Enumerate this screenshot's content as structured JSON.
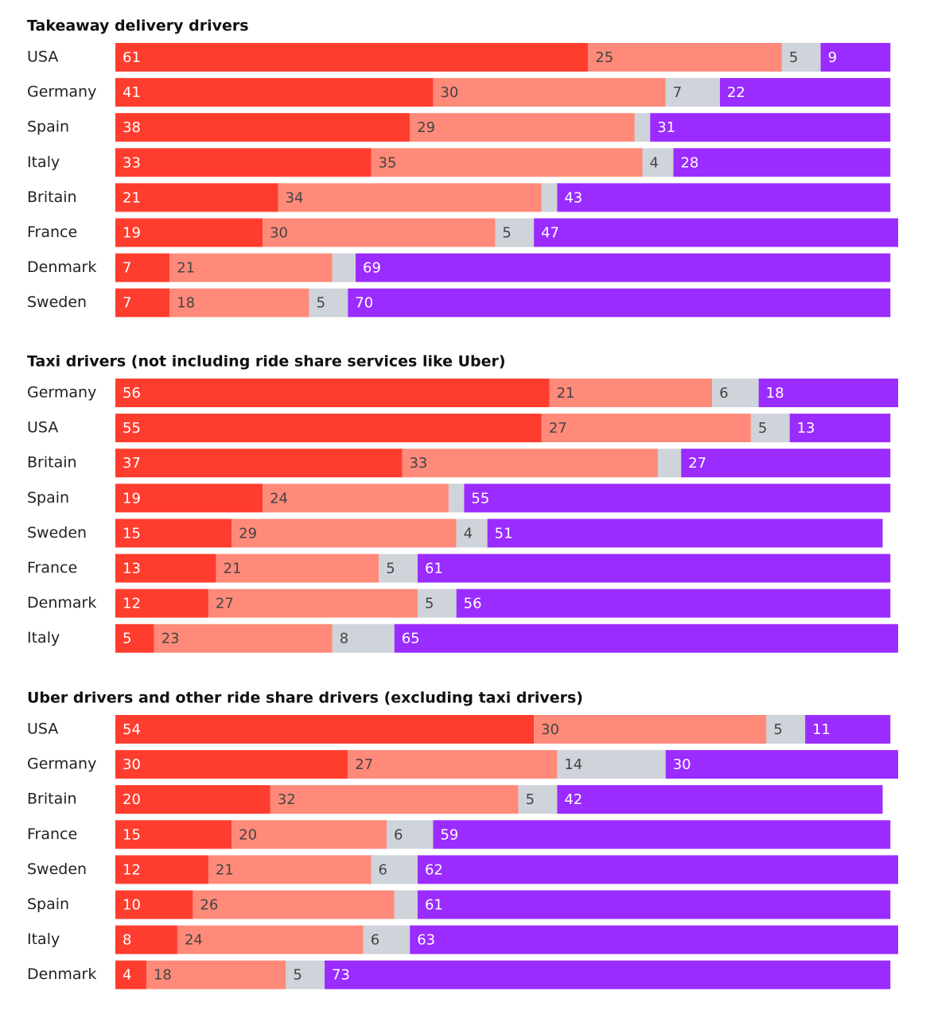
{
  "chart_data": [
    {
      "type": "bar",
      "orientation": "horizontal",
      "stacked": true,
      "title": "Takeaway delivery drivers",
      "categories": [
        "USA",
        "Germany",
        "Spain",
        "Italy",
        "Britain",
        "France",
        "Denmark",
        "Sweden"
      ],
      "series": [
        {
          "color": "#ff3d2e",
          "values": [
            61,
            41,
            38,
            33,
            21,
            19,
            7,
            7
          ]
        },
        {
          "color": "#ff8a7a",
          "values": [
            25,
            30,
            29,
            35,
            34,
            30,
            21,
            18
          ]
        },
        {
          "color": "#cfd3da",
          "values": [
            5,
            7,
            2,
            4,
            2,
            5,
            3,
            5
          ]
        },
        {
          "color": "#9b2cff",
          "values": [
            9,
            22,
            31,
            28,
            43,
            47,
            69,
            70
          ]
        }
      ]
    },
    {
      "type": "bar",
      "orientation": "horizontal",
      "stacked": true,
      "title": "Taxi drivers (not including ride share services like Uber)",
      "categories": [
        "Germany",
        "USA",
        "Britain",
        "Spain",
        "Sweden",
        "France",
        "Denmark",
        "Italy"
      ],
      "series": [
        {
          "color": "#ff3d2e",
          "values": [
            56,
            55,
            37,
            19,
            15,
            13,
            12,
            5
          ]
        },
        {
          "color": "#ff8a7a",
          "values": [
            21,
            27,
            33,
            24,
            29,
            21,
            27,
            23
          ]
        },
        {
          "color": "#cfd3da",
          "values": [
            6,
            5,
            3,
            2,
            4,
            5,
            5,
            8
          ]
        },
        {
          "color": "#9b2cff",
          "values": [
            18,
            13,
            27,
            55,
            51,
            61,
            56,
            65
          ]
        }
      ]
    },
    {
      "type": "bar",
      "orientation": "horizontal",
      "stacked": true,
      "title": "Uber drivers and other ride share drivers (excluding taxi drivers)",
      "categories": [
        "USA",
        "Germany",
        "Britain",
        "France",
        "Sweden",
        "Spain",
        "Italy",
        "Denmark"
      ],
      "series": [
        {
          "color": "#ff3d2e",
          "values": [
            54,
            30,
            20,
            15,
            12,
            10,
            8,
            4
          ]
        },
        {
          "color": "#ff8a7a",
          "values": [
            30,
            27,
            32,
            20,
            21,
            26,
            24,
            18
          ]
        },
        {
          "color": "#cfd3da",
          "values": [
            5,
            14,
            5,
            6,
            6,
            3,
            6,
            5
          ]
        },
        {
          "color": "#9b2cff",
          "values": [
            11,
            30,
            42,
            59,
            62,
            61,
            63,
            73
          ]
        }
      ]
    }
  ]
}
